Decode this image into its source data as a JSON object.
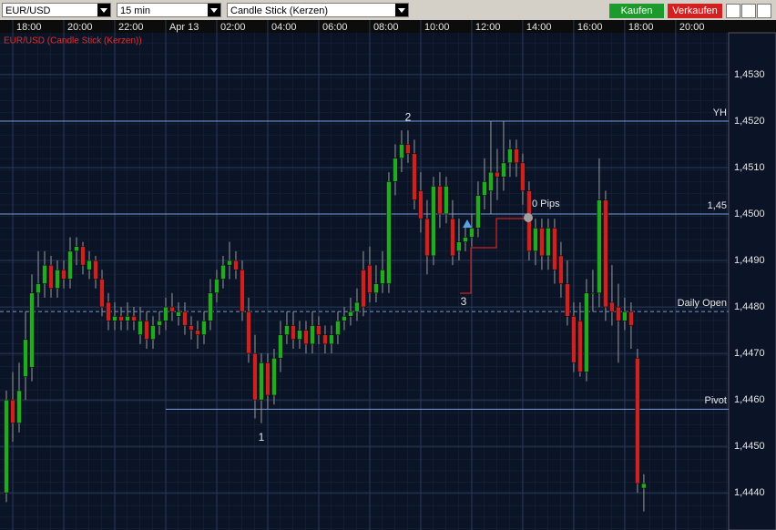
{
  "toolbar": {
    "symbol": "EUR/USD",
    "interval": "15 min",
    "chart_type": "Candle Stick (Kerzen)",
    "buy": "Kaufen",
    "sell": "Verkaufen"
  },
  "chart_data": {
    "type": "candlestick",
    "title": "EUR/USD (Candle Stick (Kerzen))",
    "up_color": "#22aa22",
    "down_color": "#cc2222",
    "open": [
      1.444,
      1.446,
      1.4455,
      1.4465,
      1.4467,
      1.4483,
      1.4485,
      1.4489,
      1.4484,
      1.4488,
      1.4486,
      1.4492,
      1.4493,
      1.4488,
      1.449,
      1.4486,
      1.4481,
      1.4477,
      1.4478,
      1.4477,
      1.4478,
      1.4474,
      1.4477,
      1.4473,
      1.4476,
      1.4477,
      1.448,
      1.4478,
      1.4479,
      1.4476,
      1.4475,
      1.4474,
      1.4477,
      1.4483,
      1.4486,
      1.4489,
      1.449,
      1.4488,
      1.4479,
      1.447,
      1.446,
      1.4468,
      1.4461,
      1.4469,
      1.4474,
      1.4476,
      1.4473,
      1.4475,
      1.4472,
      1.4476,
      1.4474,
      1.4472,
      1.4474,
      1.4477,
      1.4478,
      1.4479,
      1.4488,
      1.4489,
      1.4483,
      1.4485,
      1.4485,
      1.4507,
      1.4512,
      1.4515,
      1.4513,
      1.4505,
      1.4499,
      1.4491,
      1.4506,
      1.45,
      1.4499,
      1.4492,
      1.4494,
      1.4495,
      1.4497,
      1.4504,
      1.4505,
      1.4509,
      1.4508,
      1.4511,
      1.4514,
      1.4511,
      1.4505,
      1.4492,
      1.4497,
      1.4491,
      1.4497,
      1.4491,
      1.4485,
      1.4478,
      1.4477,
      1.4466,
      1.4483,
      1.4483,
      1.4503,
      1.4481,
      1.448,
      1.4477,
      1.4479,
      1.4469,
      1.4441
    ],
    "high": [
      1.4462,
      1.4466,
      1.4468,
      1.4479,
      1.4487,
      1.4492,
      1.4492,
      1.4491,
      1.449,
      1.449,
      1.4495,
      1.4495,
      1.4494,
      1.4492,
      1.4491,
      1.4488,
      1.4483,
      1.4481,
      1.448,
      1.4481,
      1.448,
      1.448,
      1.4479,
      1.4478,
      1.4479,
      1.4482,
      1.4483,
      1.4481,
      1.4481,
      1.4478,
      1.4477,
      1.4479,
      1.4486,
      1.4488,
      1.4491,
      1.4494,
      1.4492,
      1.449,
      1.4482,
      1.4474,
      1.447,
      1.447,
      1.4471,
      1.4477,
      1.4479,
      1.4479,
      1.4477,
      1.4477,
      1.4479,
      1.4478,
      1.4476,
      1.4476,
      1.4479,
      1.448,
      1.4482,
      1.4484,
      1.4492,
      1.4493,
      1.4489,
      1.4492,
      1.4509,
      1.4515,
      1.4518,
      1.4518,
      1.4516,
      1.4509,
      1.4503,
      1.4508,
      1.4509,
      1.4508,
      1.4503,
      1.4499,
      1.4498,
      1.45,
      1.4507,
      1.4512,
      1.452,
      1.4514,
      1.452,
      1.4516,
      1.4516,
      1.4513,
      1.4507,
      1.4499,
      1.4499,
      1.4499,
      1.4499,
      1.4494,
      1.449,
      1.4481,
      1.4481,
      1.4486,
      1.4488,
      1.4512,
      1.4505,
      1.4489,
      1.4485,
      1.4482,
      1.4481,
      1.4471,
      1.4444
    ],
    "low": [
      1.4438,
      1.4451,
      1.4453,
      1.446,
      1.4464,
      1.448,
      1.4482,
      1.4482,
      1.4482,
      1.4484,
      1.4484,
      1.4489,
      1.4487,
      1.4486,
      1.4484,
      1.4478,
      1.4475,
      1.4475,
      1.4475,
      1.4475,
      1.4475,
      1.4472,
      1.4471,
      1.4471,
      1.4474,
      1.4475,
      1.4477,
      1.4476,
      1.4474,
      1.4473,
      1.4471,
      1.4472,
      1.4475,
      1.4481,
      1.4484,
      1.4486,
      1.4486,
      1.4477,
      1.4468,
      1.4456,
      1.4455,
      1.4458,
      1.4459,
      1.4466,
      1.4472,
      1.4471,
      1.4471,
      1.447,
      1.447,
      1.4472,
      1.447,
      1.447,
      1.4472,
      1.4475,
      1.4476,
      1.4477,
      1.4478,
      1.4481,
      1.4481,
      1.4483,
      1.4483,
      1.4504,
      1.4509,
      1.4511,
      1.4501,
      1.4496,
      1.4487,
      1.4489,
      1.4497,
      1.4498,
      1.4489,
      1.449,
      1.4492,
      1.4493,
      1.4495,
      1.4501,
      1.45,
      1.4503,
      1.4505,
      1.4508,
      1.4508,
      1.4502,
      1.449,
      1.4489,
      1.4488,
      1.4488,
      1.4485,
      1.4482,
      1.4476,
      1.4466,
      1.4465,
      1.4464,
      1.4479,
      1.448,
      1.4477,
      1.4476,
      1.4468,
      1.4475,
      1.4471,
      1.444,
      1.4436
    ],
    "close": [
      1.446,
      1.4455,
      1.4462,
      1.4473,
      1.4483,
      1.4485,
      1.4489,
      1.4484,
      1.4488,
      1.4486,
      1.4492,
      1.4493,
      1.4489,
      1.449,
      1.4486,
      1.448,
      1.4477,
      1.4478,
      1.4477,
      1.4478,
      1.4477,
      1.4477,
      1.4473,
      1.4476,
      1.4477,
      1.448,
      1.4479,
      1.4479,
      1.4476,
      1.4475,
      1.4474,
      1.4477,
      1.4483,
      1.4486,
      1.4489,
      1.449,
      1.4488,
      1.4479,
      1.447,
      1.446,
      1.4468,
      1.4461,
      1.4469,
      1.4474,
      1.4476,
      1.4473,
      1.4475,
      1.4472,
      1.4476,
      1.4474,
      1.4472,
      1.4474,
      1.4477,
      1.4478,
      1.4479,
      1.4481,
      1.448,
      1.4483,
      1.4485,
      1.4488,
      1.4507,
      1.4512,
      1.4515,
      1.4513,
      1.4503,
      1.4499,
      1.4491,
      1.4506,
      1.45,
      1.4506,
      1.4491,
      1.4494,
      1.4495,
      1.4497,
      1.4504,
      1.4507,
      1.4509,
      1.4508,
      1.4511,
      1.4514,
      1.4511,
      1.4505,
      1.4492,
      1.4497,
      1.4491,
      1.4497,
      1.4488,
      1.4485,
      1.4478,
      1.4468,
      1.4466,
      1.4483,
      1.4483,
      1.4503,
      1.448,
      1.4479,
      1.4477,
      1.4479,
      1.4476,
      1.4442,
      1.4442
    ],
    "xlim": [
      -1,
      113.3
    ],
    "xticks": [
      {
        "value": 1,
        "label": "18:00"
      },
      {
        "value": 9,
        "label": "20:00"
      },
      {
        "value": 17,
        "label": "22:00"
      },
      {
        "value": 25,
        "label": "Apr 13"
      },
      {
        "value": 33,
        "label": "02:00"
      },
      {
        "value": 41,
        "label": "04:00"
      },
      {
        "value": 49,
        "label": "06:00"
      },
      {
        "value": 57,
        "label": "08:00"
      },
      {
        "value": 65,
        "label": "10:00"
      },
      {
        "value": 73,
        "label": "12:00"
      },
      {
        "value": 81,
        "label": "14:00"
      },
      {
        "value": 89,
        "label": "16:00"
      },
      {
        "value": 97,
        "label": "18:00"
      },
      {
        "value": 105,
        "label": "20:00"
      }
    ],
    "ylim": [
      1.4432,
      1.4539
    ],
    "yticks": [
      {
        "value": 1.444,
        "label": "1,4440"
      },
      {
        "value": 1.445,
        "label": "1,4450"
      },
      {
        "value": 1.446,
        "label": "1,4460"
      },
      {
        "value": 1.447,
        "label": "1,4470"
      },
      {
        "value": 1.448,
        "label": "1,4480"
      },
      {
        "value": 1.449,
        "label": "1,4490"
      },
      {
        "value": 1.45,
        "label": "1,4500"
      },
      {
        "value": 1.451,
        "label": "1,4510"
      },
      {
        "value": 1.452,
        "label": "1,4520"
      },
      {
        "value": 1.453,
        "label": "1,4530"
      }
    ],
    "levels": [
      {
        "label": "YH",
        "value": 1.452
      },
      {
        "label": "1,45",
        "value": 1.45
      },
      {
        "label": "Daily Open",
        "value": 1.4479,
        "style": "dashed"
      },
      {
        "label": "Pivot",
        "value": 1.4458
      }
    ],
    "annotations": [
      "2",
      "1",
      "3"
    ],
    "trade_label": "0 Pips"
  }
}
